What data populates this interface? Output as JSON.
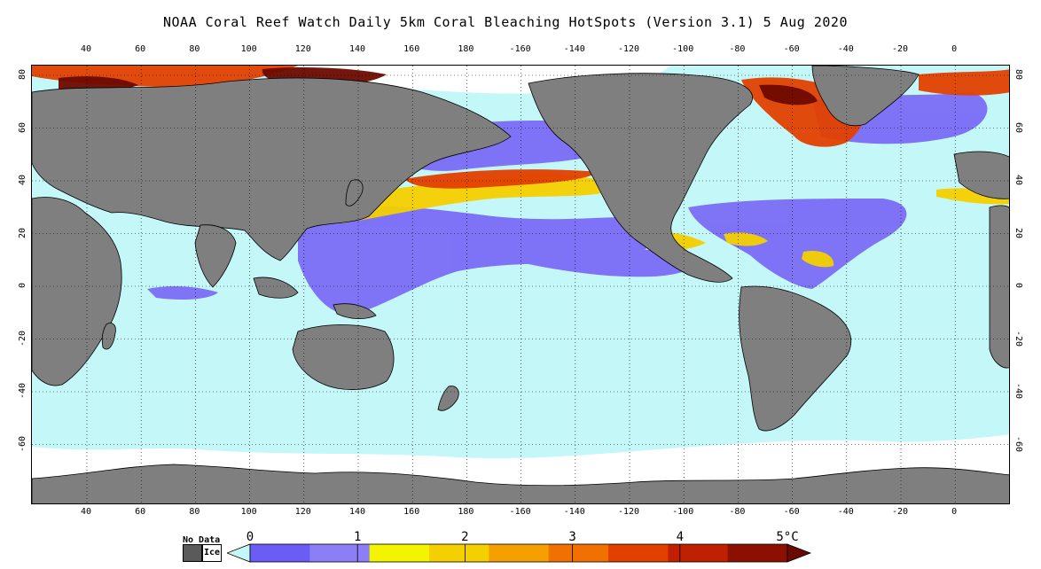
{
  "title": "NOAA Coral Reef Watch Daily 5km Coral Bleaching HotSpots (Version 3.1)  5 Aug 2020",
  "map": {
    "lon_ticks": [
      "40",
      "60",
      "80",
      "100",
      "120",
      "140",
      "160",
      "180",
      "-160",
      "-140",
      "-120",
      "-100",
      "-80",
      "-60",
      "-40",
      "-20",
      "0"
    ],
    "lat_ticks": [
      "80",
      "60",
      "40",
      "20",
      "0",
      "-20",
      "-40",
      "-60"
    ],
    "colors": {
      "land": "#7f7f7f",
      "ocean_zero": "#c4f7f7",
      "ice": "#ffffff",
      "hotspot_low": "#7b6cf6",
      "hotspot_mid": "#f5d000",
      "hotspot_high": "#e34000",
      "hotspot_max": "#6b0a00"
    }
  },
  "legend": {
    "no_data_label": "No Data",
    "ice_label": "Ice",
    "scale_labels": [
      "0",
      "1",
      "2",
      "3",
      "4",
      "5°C"
    ],
    "colors": [
      "#c4f7f7",
      "#6b5cf5",
      "#8c7ef7",
      "#f4f400",
      "#f5d000",
      "#f5a000",
      "#f07000",
      "#e34000",
      "#c02000",
      "#8c1000",
      "#6b0a00"
    ]
  }
}
